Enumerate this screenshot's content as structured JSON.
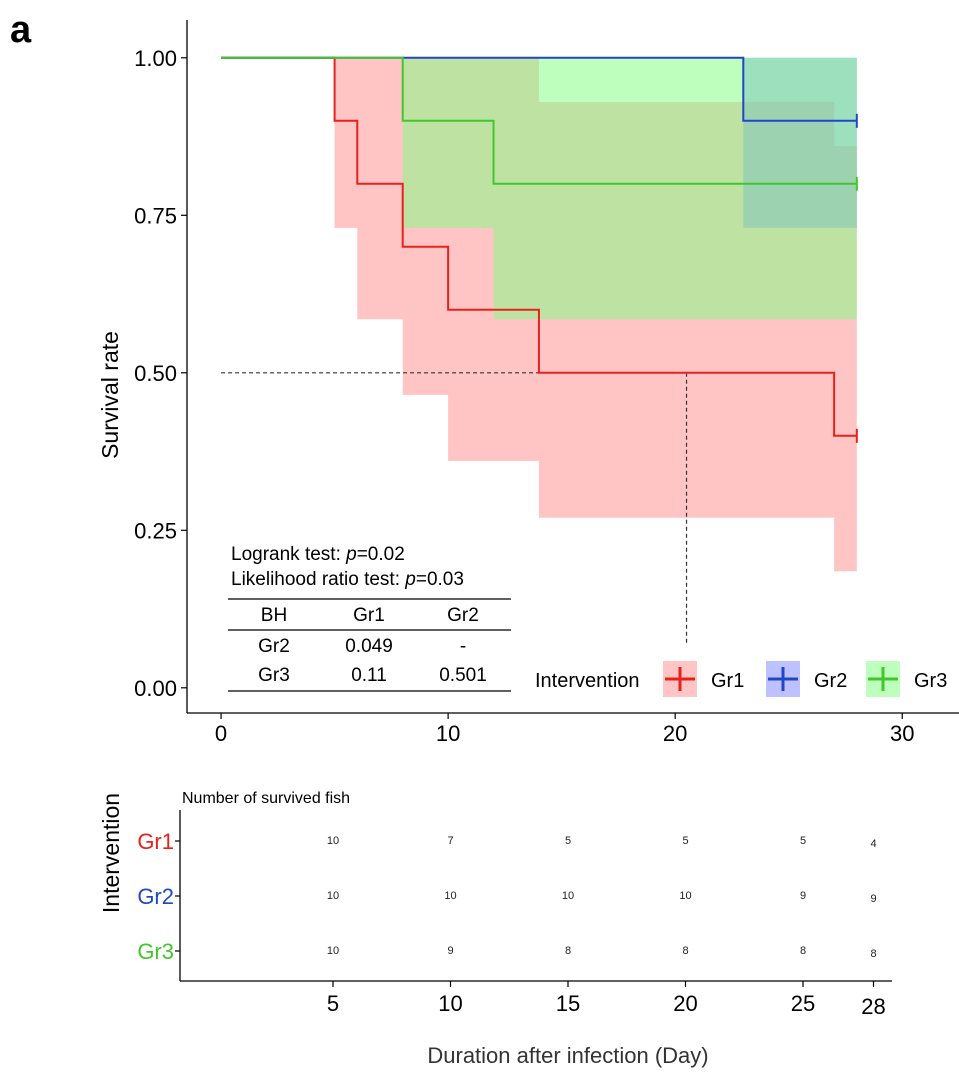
{
  "panel_label": "a",
  "chart_data": [
    {
      "type": "line",
      "subtype": "kaplan-meier",
      "ylabel": "Survival rate",
      "xlabel": "",
      "xlim": [
        -1.5,
        32.5
      ],
      "ylim": [
        -0.04,
        1.06
      ],
      "x_ticks": [
        0,
        10,
        20,
        30
      ],
      "y_ticks": [
        0.0,
        0.25,
        0.5,
        0.75,
        1.0
      ],
      "y_tick_labels": [
        "0.00",
        "0.25",
        "0.50",
        "0.75",
        "1.00"
      ],
      "grid": false,
      "legend": {
        "title": "Intervention",
        "position": "bottom-right",
        "entries": [
          "Gr1",
          "Gr2",
          "Gr3"
        ]
      },
      "colors": {
        "Gr1": "#e8211d",
        "Gr2": "#2147c9",
        "Gr3": "#41c72b",
        "Gr1_band": "#ff8c8c",
        "Gr2_band": "#7b84ff",
        "Gr3_band": "#7dff7d"
      },
      "series": [
        {
          "name": "Gr1",
          "x": [
            0,
            5,
            6,
            8,
            10,
            14,
            27,
            28
          ],
          "y": [
            1.0,
            0.9,
            0.8,
            0.7,
            0.6,
            0.5,
            0.4,
            0.4
          ],
          "lower": [
            1.0,
            0.73,
            0.585,
            0.465,
            0.36,
            0.27,
            0.185,
            0.185
          ],
          "upper": [
            1.0,
            1.0,
            1.0,
            1.0,
            1.0,
            0.93,
            0.86,
            0.86
          ],
          "censor_x": [
            28
          ],
          "censor_y": [
            0.4
          ]
        },
        {
          "name": "Gr2",
          "x": [
            0,
            23,
            28
          ],
          "y": [
            1.0,
            0.9,
            0.9
          ],
          "lower": [
            1.0,
            0.73,
            0.73
          ],
          "upper": [
            1.0,
            1.0,
            1.0
          ],
          "censor_x": [
            28
          ],
          "censor_y": [
            0.9
          ]
        },
        {
          "name": "Gr3",
          "x": [
            0,
            8,
            12,
            28
          ],
          "y": [
            1.0,
            0.9,
            0.8,
            0.8
          ],
          "lower": [
            1.0,
            0.73,
            0.585,
            0.585
          ],
          "upper": [
            1.0,
            1.0,
            1.0,
            1.0
          ],
          "censor_x": [
            28
          ],
          "censor_y": [
            0.8
          ]
        }
      ],
      "median_reference": {
        "x": 20.5,
        "y": 0.5,
        "y_bottom": 0.07
      },
      "annotation": {
        "line1_prefix": "Logrank test: ",
        "line1_p": "p",
        "line1_value": "=0.02",
        "line2_prefix": "Likelihood ratio test: ",
        "line2_p": "p",
        "line2_value": "=0.03",
        "table": {
          "header": [
            "BH",
            "Gr1",
            "Gr2"
          ],
          "rows": [
            [
              "Gr2",
              "0.049",
              "-"
            ],
            [
              "Gr3",
              "0.11",
              "0.501"
            ]
          ]
        }
      }
    },
    {
      "type": "table",
      "title": "Number of survived fish",
      "ylabel": "Intervention",
      "xlabel": "Duration after infection (Day)",
      "x_ticks": [
        5,
        10,
        15,
        20,
        25,
        28
      ],
      "groups": [
        "Gr1",
        "Gr2",
        "Gr3"
      ],
      "values": [
        [
          10,
          7,
          5,
          5,
          5,
          4
        ],
        [
          10,
          10,
          10,
          10,
          9,
          9
        ],
        [
          10,
          9,
          8,
          8,
          8,
          8
        ]
      ]
    }
  ]
}
